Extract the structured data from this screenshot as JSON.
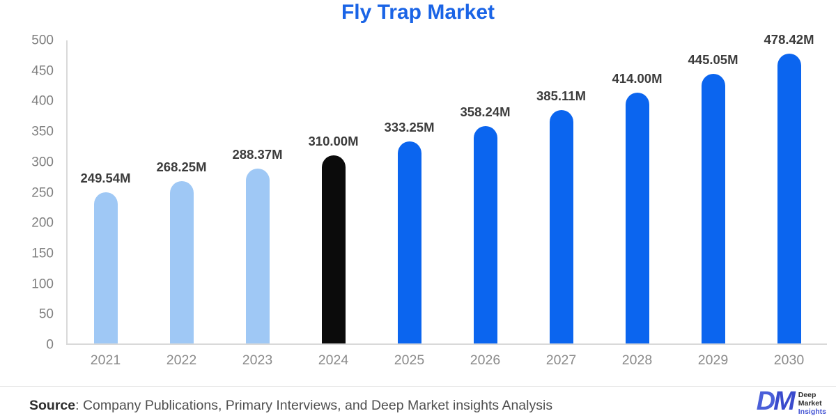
{
  "title": "Fly Trap Market",
  "chart_data": {
    "type": "bar",
    "title": "Fly Trap Market",
    "categories": [
      "2021",
      "2022",
      "2023",
      "2024",
      "2025",
      "2026",
      "2027",
      "2028",
      "2029",
      "2030"
    ],
    "values": [
      249.54,
      268.25,
      288.37,
      310.0,
      333.25,
      358.24,
      385.11,
      414.0,
      445.05,
      478.42
    ],
    "value_labels": [
      "249.54M",
      "268.25M",
      "288.37M",
      "310.00M",
      "333.25M",
      "358.24M",
      "385.11M",
      "414.00M",
      "445.05M",
      "478.42M"
    ],
    "bar_colors": [
      "#9fc8f5",
      "#9fc8f5",
      "#9fc8f5",
      "#0b0b0b",
      "#0b65ef",
      "#0b65ef",
      "#0b65ef",
      "#0b65ef",
      "#0b65ef",
      "#0b65ef"
    ],
    "xlabel": "",
    "ylabel": "",
    "ylim": [
      0,
      500
    ],
    "ytick_step": 50,
    "grid": false,
    "legend": false
  },
  "colors": {
    "title": "#1a64e6",
    "light_blue_bar": "#9fc8f5",
    "black_bar": "#0b0b0b",
    "blue_bar": "#0b65ef",
    "axis_line": "#d9d9d9",
    "y_tick_text": "#7f7f7f",
    "x_tick_text": "#8a8a8a",
    "value_label_text": "#3c3c3c",
    "logo_d": "#4a5fd9",
    "logo_m": "#3a4bcd"
  },
  "footer": {
    "source_label": "Source",
    "source_text": ": Company Publications, Primary Interviews, and Deep Market insights Analysis",
    "logo": {
      "monogram_d": "D",
      "monogram_m": "M",
      "line1": "Deep",
      "line2": "Market",
      "line3": "Insights"
    }
  }
}
